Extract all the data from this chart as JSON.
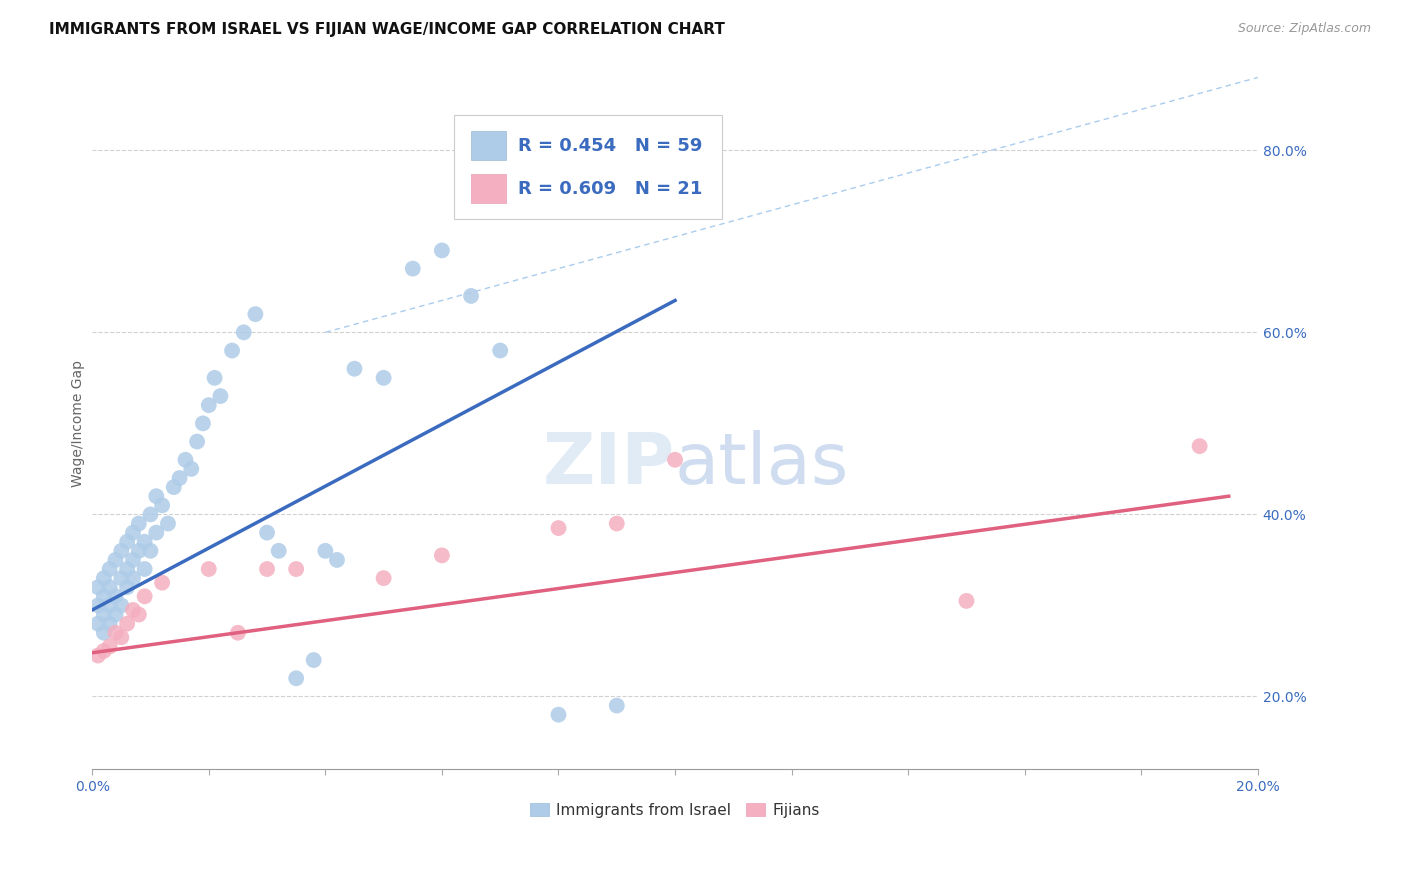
{
  "title": "IMMIGRANTS FROM ISRAEL VS FIJIAN WAGE/INCOME GAP CORRELATION CHART",
  "source": "Source: ZipAtlas.com",
  "ylabel": "Wage/Income Gap",
  "xlim": [
    0.0,
    0.2
  ],
  "ylim": [
    0.12,
    0.88
  ],
  "xticks": [
    0.0,
    0.02,
    0.04,
    0.06,
    0.08,
    0.1,
    0.12,
    0.14,
    0.16,
    0.18,
    0.2
  ],
  "xtick_labels": [
    "0.0%",
    "",
    "",
    "",
    "",
    "",
    "",
    "",
    "",
    "",
    "20.0%"
  ],
  "yticks": [
    0.2,
    0.4,
    0.6,
    0.8
  ],
  "ytick_labels": [
    "20.0%",
    "40.0%",
    "60.0%",
    "80.0%"
  ],
  "israel_R": 0.454,
  "israel_N": 59,
  "fijian_R": 0.609,
  "fijian_N": 21,
  "israel_color": "#aecce8",
  "fijian_color": "#f4afc0",
  "israel_line_color": "#3b6bbf",
  "fijian_line_color": "#e06080",
  "scatter_size": 130,
  "scatter_alpha": 0.85,
  "israel_scatter_x": [
    0.001,
    0.001,
    0.001,
    0.002,
    0.002,
    0.002,
    0.002,
    0.003,
    0.003,
    0.003,
    0.003,
    0.004,
    0.004,
    0.004,
    0.005,
    0.005,
    0.005,
    0.006,
    0.006,
    0.006,
    0.007,
    0.007,
    0.007,
    0.008,
    0.008,
    0.009,
    0.009,
    0.01,
    0.01,
    0.011,
    0.011,
    0.012,
    0.013,
    0.014,
    0.015,
    0.016,
    0.017,
    0.018,
    0.019,
    0.02,
    0.021,
    0.022,
    0.024,
    0.026,
    0.028,
    0.03,
    0.032,
    0.035,
    0.038,
    0.04,
    0.042,
    0.045,
    0.05,
    0.055,
    0.06,
    0.065,
    0.07,
    0.08,
    0.09
  ],
  "israel_scatter_y": [
    0.3,
    0.32,
    0.28,
    0.31,
    0.33,
    0.29,
    0.27,
    0.3,
    0.32,
    0.34,
    0.28,
    0.31,
    0.35,
    0.29,
    0.33,
    0.36,
    0.3,
    0.34,
    0.37,
    0.32,
    0.35,
    0.38,
    0.33,
    0.36,
    0.39,
    0.34,
    0.37,
    0.36,
    0.4,
    0.38,
    0.42,
    0.41,
    0.39,
    0.43,
    0.44,
    0.46,
    0.45,
    0.48,
    0.5,
    0.52,
    0.55,
    0.53,
    0.58,
    0.6,
    0.62,
    0.38,
    0.36,
    0.22,
    0.24,
    0.36,
    0.35,
    0.56,
    0.55,
    0.67,
    0.69,
    0.64,
    0.58,
    0.18,
    0.19
  ],
  "fijian_scatter_x": [
    0.001,
    0.002,
    0.003,
    0.004,
    0.005,
    0.006,
    0.007,
    0.008,
    0.009,
    0.012,
    0.02,
    0.025,
    0.03,
    0.035,
    0.05,
    0.06,
    0.08,
    0.09,
    0.1,
    0.15,
    0.19
  ],
  "fijian_scatter_y": [
    0.245,
    0.25,
    0.255,
    0.27,
    0.265,
    0.28,
    0.295,
    0.29,
    0.31,
    0.325,
    0.34,
    0.27,
    0.34,
    0.34,
    0.33,
    0.355,
    0.385,
    0.39,
    0.46,
    0.305,
    0.475
  ],
  "israel_trendline_x": [
    0.0,
    0.1
  ],
  "israel_trendline_y": [
    0.295,
    0.635
  ],
  "fijian_trendline_x": [
    0.0,
    0.195
  ],
  "fijian_trendline_y": [
    0.248,
    0.42
  ],
  "diag_line_x": [
    0.04,
    0.2
  ],
  "diag_line_y": [
    0.6,
    0.88
  ],
  "background_color": "#ffffff",
  "grid_color": "#cccccc",
  "title_fontsize": 11,
  "axis_label_fontsize": 10,
  "tick_fontsize": 10,
  "legend_fontsize": 12
}
